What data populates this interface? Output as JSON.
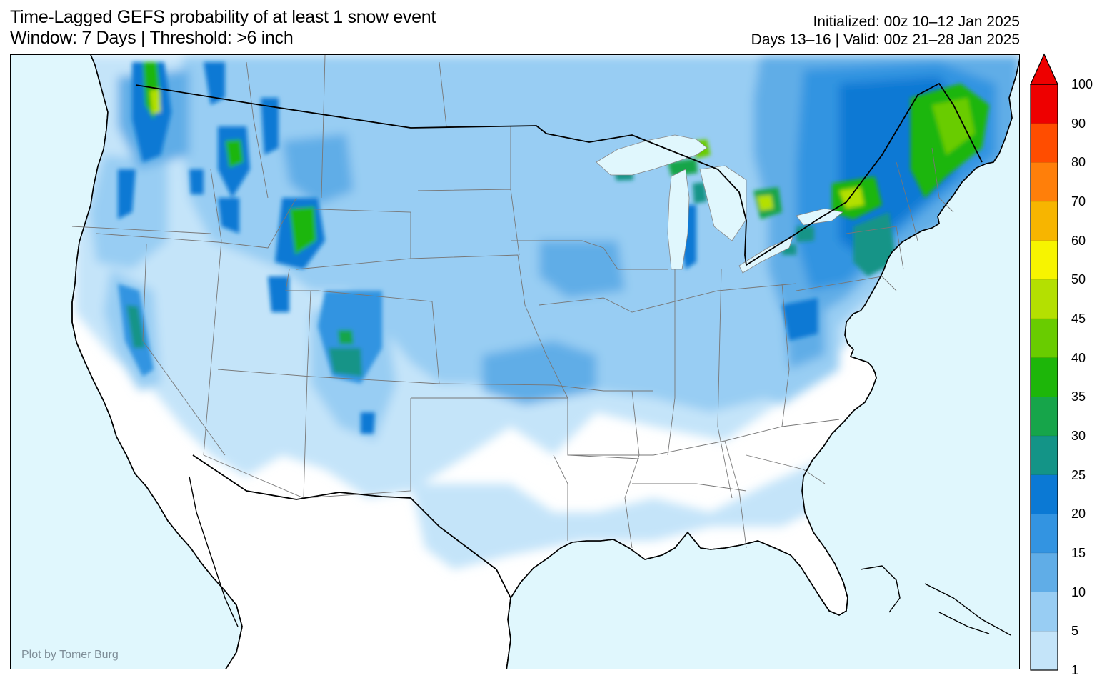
{
  "header": {
    "title_line1": "Time-Lagged GEFS probability of at least 1 snow event",
    "title_line2": "Window: 7 Days | Threshold: >6 inch",
    "initialized": "Initialized: 00z 10–12 Jan 2025",
    "valid": "Days 13–16 | Valid: 00z 21–28 Jan 2025"
  },
  "map": {
    "credit": "Plot by Tomer Burg",
    "ocean_color": "#e0f7fd",
    "land_color": "#ffffff",
    "border_color": "#000000",
    "state_line_color": "#777777"
  },
  "colorbar": {
    "labels": [
      "100",
      "90",
      "80",
      "70",
      "60",
      "50",
      "45",
      "40",
      "35",
      "30",
      "25",
      "20",
      "15",
      "10",
      "5",
      "1"
    ],
    "colors": [
      "#ee0000",
      "#ff4d00",
      "#ff7f0a",
      "#f7b500",
      "#f7f400",
      "#b4e001",
      "#69cc00",
      "#1db609",
      "#16a54a",
      "#139487",
      "#0b79d4",
      "#3394e1",
      "#60ade7",
      "#98cdf3",
      "#c4e4f9"
    ],
    "extend_max": true
  },
  "regions": [
    {
      "name": "cascades-north",
      "level": 45
    },
    {
      "name": "northern-rockies-idaho",
      "level": 35
    },
    {
      "name": "wyoming-ranges",
      "level": 35
    },
    {
      "name": "colorado-rockies",
      "level": 25
    },
    {
      "name": "sierra-nevada",
      "level": 25
    },
    {
      "name": "lake-superior-snowbelt",
      "level": 45
    },
    {
      "name": "western-michigan-snowbelt",
      "level": 35
    },
    {
      "name": "northern-lower-michigan",
      "level": 45
    },
    {
      "name": "tug-hill-adirondacks",
      "level": 45
    },
    {
      "name": "northern-new-england",
      "level": 40
    },
    {
      "name": "quebec-north",
      "level": 40
    },
    {
      "name": "appalachian-highlands",
      "level": 25
    }
  ]
}
